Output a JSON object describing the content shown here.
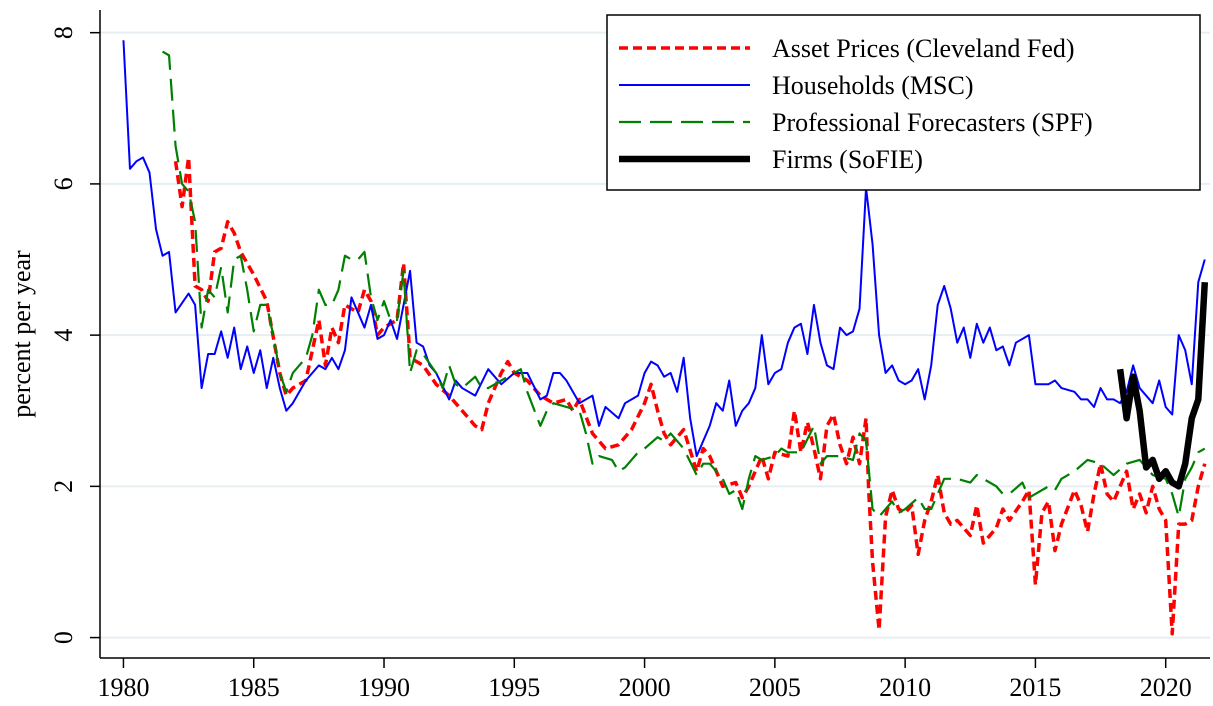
{
  "chart_data": {
    "type": "line",
    "ylabel": "percent per year",
    "xlim": [
      1979.1,
      2021.7
    ],
    "ylim": [
      -0.27,
      8.3
    ],
    "xticks": [
      1980,
      1985,
      1990,
      1995,
      2000,
      2005,
      2010,
      2015,
      2020
    ],
    "yticks": [
      0,
      2,
      4,
      6,
      8
    ],
    "grid": true,
    "legend": "top-right",
    "series": [
      {
        "name": "Asset Prices (Cleveland Fed)",
        "color": "#ff0000",
        "style": "dotted",
        "x": [
          1982.0,
          1982.25,
          1982.5,
          1982.75,
          1983.0,
          1983.25,
          1983.5,
          1983.75,
          1984.0,
          1984.25,
          1984.5,
          1985.0,
          1985.5,
          1986.0,
          1986.25,
          1986.5,
          1987.0,
          1987.25,
          1987.5,
          1987.75,
          1988.0,
          1988.25,
          1988.5,
          1989.0,
          1989.25,
          1989.5,
          1989.75,
          1990.0,
          1990.5,
          1990.75,
          1991.0,
          1991.5,
          1992.0,
          1992.5,
          1993.0,
          1993.5,
          1993.75,
          1994.0,
          1994.5,
          1994.75,
          1995.0,
          1995.5,
          1996.0,
          1996.5,
          1997.0,
          1997.25,
          1997.5,
          1998.0,
          1998.5,
          1999.0,
          1999.5,
          2000.0,
          2000.25,
          2000.5,
          2000.75,
          2001.0,
          2001.5,
          2002.0,
          2002.25,
          2002.5,
          2003.0,
          2003.5,
          2003.75,
          2004.0,
          2004.25,
          2004.5,
          2004.75,
          2005.0,
          2005.5,
          2005.75,
          2006.0,
          2006.25,
          2006.5,
          2006.75,
          2007.0,
          2007.25,
          2007.5,
          2007.75,
          2008.0,
          2008.25,
          2008.5,
          2008.6,
          2008.75,
          2009.0,
          2009.25,
          2009.5,
          2009.75,
          2010.0,
          2010.25,
          2010.5,
          2010.75,
          2011.0,
          2011.25,
          2011.5,
          2011.75,
          2012.0,
          2012.5,
          2012.75,
          2013.0,
          2013.5,
          2013.75,
          2014.0,
          2014.5,
          2014.75,
          2015.0,
          2015.25,
          2015.5,
          2015.75,
          2016.0,
          2016.5,
          2016.75,
          2017.0,
          2017.25,
          2017.5,
          2017.75,
          2018.0,
          2018.5,
          2018.75,
          2019.0,
          2019.25,
          2019.5,
          2019.75,
          2020.0,
          2020.25,
          2020.5,
          2020.75,
          2021.0,
          2021.25,
          2021.5
        ],
        "values": [
          6.3,
          5.7,
          6.35,
          4.65,
          4.6,
          4.45,
          5.1,
          5.15,
          5.5,
          5.35,
          5.1,
          4.8,
          4.45,
          3.5,
          3.2,
          3.3,
          3.4,
          3.8,
          4.2,
          3.6,
          4.1,
          3.9,
          4.4,
          4.3,
          4.6,
          4.45,
          4.0,
          4.1,
          4.2,
          4.95,
          3.7,
          3.6,
          3.35,
          3.2,
          3.0,
          2.8,
          2.75,
          3.1,
          3.5,
          3.65,
          3.5,
          3.4,
          3.2,
          3.1,
          3.15,
          3.0,
          3.15,
          2.7,
          2.5,
          2.55,
          2.75,
          3.1,
          3.35,
          3.0,
          2.7,
          2.55,
          2.75,
          2.2,
          2.5,
          2.4,
          2.0,
          2.05,
          1.85,
          2.0,
          2.2,
          2.4,
          2.1,
          2.45,
          2.4,
          3.0,
          2.45,
          2.85,
          2.5,
          2.1,
          2.8,
          2.95,
          2.55,
          2.3,
          2.65,
          2.3,
          2.9,
          1.95,
          1.0,
          0.1,
          1.6,
          1.95,
          1.7,
          1.65,
          1.75,
          1.1,
          1.55,
          1.8,
          2.15,
          1.65,
          1.5,
          1.55,
          1.35,
          1.75,
          1.25,
          1.45,
          1.7,
          1.55,
          1.8,
          1.95,
          0.7,
          1.65,
          1.8,
          1.15,
          1.5,
          1.95,
          1.75,
          1.4,
          1.9,
          2.3,
          1.9,
          1.8,
          2.2,
          1.7,
          1.9,
          1.65,
          2.0,
          1.7,
          1.55,
          0.05,
          1.5,
          1.5,
          1.55,
          2.0,
          2.3
        ]
      },
      {
        "name": "Households (MSC)",
        "color": "#0000ff",
        "style": "solid",
        "x": [
          1980.0,
          1980.25,
          1980.5,
          1980.75,
          1981.0,
          1981.25,
          1981.5,
          1981.75,
          1982.0,
          1982.5,
          1982.75,
          1983.0,
          1983.25,
          1983.5,
          1983.75,
          1984.0,
          1984.25,
          1984.5,
          1984.75,
          1985.0,
          1985.25,
          1985.5,
          1985.75,
          1986.0,
          1986.25,
          1986.5,
          1987.0,
          1987.5,
          1987.75,
          1988.0,
          1988.25,
          1988.5,
          1988.75,
          1989.0,
          1989.25,
          1989.5,
          1989.75,
          1990.0,
          1990.25,
          1990.5,
          1990.75,
          1991.0,
          1991.25,
          1991.5,
          1991.75,
          1992.0,
          1992.5,
          1992.75,
          1993.0,
          1993.5,
          1994.0,
          1994.5,
          1995.0,
          1995.5,
          1996.0,
          1996.25,
          1996.5,
          1996.75,
          1997.0,
          1997.5,
          1998.0,
          1998.25,
          1998.5,
          1999.0,
          1999.25,
          1999.75,
          2000.0,
          2000.25,
          2000.5,
          2000.75,
          2001.0,
          2001.25,
          2001.5,
          2001.75,
          2002.0,
          2002.5,
          2002.75,
          2003.0,
          2003.25,
          2003.5,
          2003.75,
          2004.0,
          2004.25,
          2004.5,
          2004.75,
          2005.0,
          2005.25,
          2005.5,
          2005.75,
          2006.0,
          2006.25,
          2006.5,
          2006.75,
          2007.0,
          2007.25,
          2007.5,
          2007.75,
          2008.0,
          2008.25,
          2008.5,
          2008.75,
          2009.0,
          2009.25,
          2009.5,
          2009.75,
          2010.0,
          2010.25,
          2010.5,
          2010.75,
          2011.0,
          2011.25,
          2011.5,
          2011.75,
          2012.0,
          2012.25,
          2012.5,
          2012.75,
          2013.0,
          2013.25,
          2013.5,
          2013.75,
          2014.0,
          2014.25,
          2014.75,
          2015.0,
          2015.5,
          2015.75,
          2016.0,
          2016.5,
          2016.75,
          2017.0,
          2017.25,
          2017.5,
          2017.75,
          2018.0,
          2018.25,
          2018.5,
          2018.75,
          2019.0,
          2019.5,
          2019.75,
          2020.0,
          2020.25,
          2020.5,
          2020.75,
          2021.0,
          2021.25,
          2021.5
        ],
        "values": [
          7.9,
          6.2,
          6.3,
          6.35,
          6.15,
          5.4,
          5.05,
          5.1,
          4.3,
          4.55,
          4.4,
          3.3,
          3.75,
          3.75,
          4.05,
          3.7,
          4.1,
          3.55,
          3.85,
          3.5,
          3.8,
          3.3,
          3.7,
          3.3,
          3.0,
          3.1,
          3.4,
          3.6,
          3.55,
          3.7,
          3.55,
          3.8,
          4.5,
          4.3,
          4.1,
          4.4,
          3.95,
          4.0,
          4.2,
          3.95,
          4.4,
          4.85,
          3.9,
          3.85,
          3.6,
          3.5,
          3.15,
          3.4,
          3.3,
          3.2,
          3.55,
          3.35,
          3.5,
          3.5,
          3.15,
          3.2,
          3.5,
          3.5,
          3.4,
          3.1,
          3.2,
          2.8,
          3.05,
          2.9,
          3.1,
          3.2,
          3.5,
          3.65,
          3.6,
          3.45,
          3.5,
          3.25,
          3.7,
          2.9,
          2.4,
          2.8,
          3.1,
          3.0,
          3.4,
          2.8,
          3.0,
          3.1,
          3.3,
          4.0,
          3.35,
          3.5,
          3.55,
          3.9,
          4.1,
          4.15,
          3.75,
          4.4,
          3.9,
          3.6,
          3.55,
          4.1,
          4.0,
          4.05,
          4.35,
          5.95,
          5.2,
          4.0,
          3.5,
          3.6,
          3.4,
          3.35,
          3.4,
          3.55,
          3.15,
          3.6,
          4.4,
          4.65,
          4.35,
          3.9,
          4.1,
          3.7,
          4.15,
          3.9,
          4.1,
          3.8,
          3.85,
          3.6,
          3.9,
          4.0,
          3.35,
          3.35,
          3.4,
          3.3,
          3.25,
          3.15,
          3.15,
          3.05,
          3.3,
          3.15,
          3.15,
          3.1,
          3.25,
          3.6,
          3.3,
          3.1,
          3.4,
          3.05,
          2.95,
          4.0,
          3.8,
          3.35,
          4.7,
          5.0
        ]
      },
      {
        "name": "Professional Forecasters (SPF)",
        "color": "#008000",
        "style": "dashed",
        "x": [
          1981.5,
          1981.75,
          1982.0,
          1982.25,
          1982.5,
          1982.75,
          1983.0,
          1983.25,
          1983.5,
          1983.75,
          1984.0,
          1984.25,
          1984.5,
          1984.75,
          1985.0,
          1985.25,
          1985.5,
          1985.75,
          1986.0,
          1986.25,
          1986.5,
          1987.0,
          1987.25,
          1987.5,
          1987.75,
          1988.0,
          1988.25,
          1988.5,
          1988.75,
          1989.0,
          1989.25,
          1989.5,
          1989.75,
          1990.0,
          1990.25,
          1990.5,
          1990.75,
          1991.0,
          1991.25,
          1991.5,
          1992.0,
          1992.25,
          1992.5,
          1992.75,
          1993.0,
          1993.5,
          1993.75,
          1994.0,
          1994.5,
          1995.0,
          1995.25,
          1995.5,
          1996.0,
          1996.25,
          1996.5,
          1997.0,
          1997.5,
          1997.75,
          1998.0,
          1998.25,
          1998.75,
          1999.0,
          1999.25,
          1999.75,
          2000.0,
          2000.5,
          2000.75,
          2001.0,
          2001.5,
          2002.0,
          2002.25,
          2002.5,
          2003.0,
          2003.25,
          2003.5,
          2003.75,
          2004.0,
          2004.25,
          2004.5,
          2005.0,
          2005.25,
          2005.5,
          2006.0,
          2006.5,
          2006.75,
          2007.0,
          2007.5,
          2008.0,
          2008.25,
          2008.5,
          2008.75,
          2009.0,
          2009.5,
          2009.75,
          2010.0,
          2010.5,
          2010.75,
          2011.0,
          2011.5,
          2012.0,
          2012.5,
          2012.75,
          2013.0,
          2013.5,
          2013.75,
          2014.0,
          2014.5,
          2014.75,
          2015.0,
          2015.5,
          2015.75,
          2016.0,
          2016.5,
          2017.0,
          2017.5,
          2018.0,
          2018.5,
          2019.0,
          2019.5,
          2020.0,
          2020.25,
          2020.5,
          2020.75,
          2021.0,
          2021.25,
          2021.5
        ],
        "values": [
          7.75,
          7.7,
          6.5,
          6.0,
          5.9,
          5.5,
          4.1,
          4.6,
          4.5,
          4.9,
          4.3,
          5.0,
          5.05,
          4.6,
          4.05,
          4.4,
          4.4,
          4.0,
          3.5,
          3.25,
          3.5,
          3.7,
          4.0,
          4.6,
          4.4,
          4.4,
          4.6,
          5.05,
          5.0,
          5.0,
          5.1,
          4.5,
          4.2,
          4.45,
          4.2,
          4.2,
          4.85,
          3.5,
          3.8,
          3.75,
          3.5,
          3.3,
          3.6,
          3.35,
          3.3,
          3.45,
          3.3,
          3.3,
          3.4,
          3.5,
          3.55,
          3.25,
          2.8,
          3.0,
          3.1,
          3.05,
          3.0,
          2.7,
          2.3,
          2.4,
          2.35,
          2.2,
          2.25,
          2.45,
          2.5,
          2.65,
          2.6,
          2.7,
          2.5,
          2.15,
          2.3,
          2.3,
          2.1,
          1.9,
          1.95,
          1.7,
          2.1,
          2.4,
          2.35,
          2.4,
          2.5,
          2.45,
          2.45,
          2.8,
          2.3,
          2.4,
          2.4,
          2.35,
          2.7,
          2.6,
          1.7,
          1.6,
          1.8,
          1.65,
          1.7,
          1.85,
          1.7,
          1.7,
          2.1,
          2.1,
          2.05,
          2.15,
          2.1,
          2.0,
          1.9,
          1.9,
          2.05,
          1.85,
          1.9,
          2.0,
          1.95,
          2.1,
          2.2,
          2.35,
          2.3,
          2.15,
          2.3,
          2.35,
          2.15,
          2.1,
          1.9,
          1.6,
          2.1,
          2.25,
          2.45,
          2.5
        ]
      },
      {
        "name": "Firms (SoFIE)",
        "color": "#000000",
        "style": "thick",
        "x": [
          2018.25,
          2018.5,
          2018.75,
          2019.0,
          2019.25,
          2019.5,
          2019.75,
          2020.0,
          2020.25,
          2020.5,
          2020.75,
          2021.0,
          2021.25,
          2021.5
        ],
        "values": [
          3.55,
          2.9,
          3.45,
          3.0,
          2.25,
          2.35,
          2.1,
          2.2,
          2.05,
          2.0,
          2.3,
          2.9,
          3.15,
          4.7
        ]
      }
    ]
  }
}
